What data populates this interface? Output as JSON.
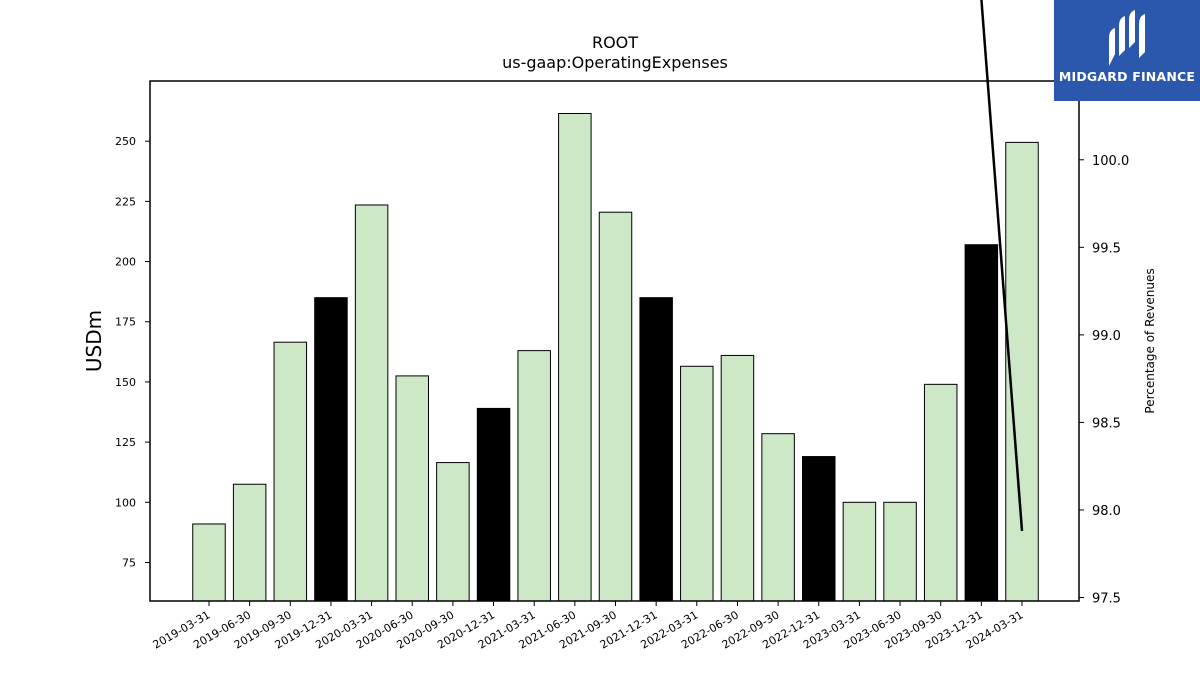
{
  "chart_data": {
    "type": "bar",
    "title": "ROOT",
    "subtitle": "us-gaap:OperatingExpenses",
    "ylabel": "USDm",
    "y2label": "Percentage of Revenues",
    "ylim": [
      59,
      275
    ],
    "y2lim": [
      97.48,
      100.45
    ],
    "yticks": [
      75,
      100,
      125,
      150,
      175,
      200,
      225,
      250
    ],
    "y2ticks": [
      "97.5",
      "98.0",
      "98.5",
      "99.0",
      "99.5",
      "100.0"
    ],
    "categories": [
      "2019-03-31",
      "2019-06-30",
      "2019-09-30",
      "2019-12-31",
      "2020-03-31",
      "2020-06-30",
      "2020-09-30",
      "2020-12-31",
      "2021-03-31",
      "2021-06-30",
      "2021-09-30",
      "2021-12-31",
      "2022-03-31",
      "2022-06-30",
      "2022-09-30",
      "2022-12-31",
      "2023-03-31",
      "2023-06-30",
      "2023-09-30",
      "2023-12-31",
      "2024-03-31"
    ],
    "values": [
      91,
      107.5,
      166.5,
      185,
      223.5,
      152.5,
      116.5,
      139,
      163,
      261.5,
      220.5,
      185,
      156.5,
      161,
      128.5,
      119,
      100,
      100,
      149,
      207,
      249.5
    ],
    "highlight": [
      false,
      false,
      false,
      true,
      false,
      false,
      false,
      true,
      false,
      false,
      false,
      true,
      false,
      false,
      false,
      true,
      false,
      false,
      false,
      true,
      false
    ],
    "colors": {
      "bar": "#cde8c7",
      "highlight": "#000000",
      "edge": "#000000",
      "line": "#000000"
    },
    "line_series": {
      "axis": "right",
      "points": [
        {
          "x": "2023-12-31",
          "y": 100.92
        },
        {
          "x": "2024-03-31",
          "y": 97.88
        }
      ]
    },
    "grid": false,
    "legend": "none"
  },
  "logo": {
    "text": "MIDGARD FINANCE",
    "background": "#2b58ad"
  }
}
